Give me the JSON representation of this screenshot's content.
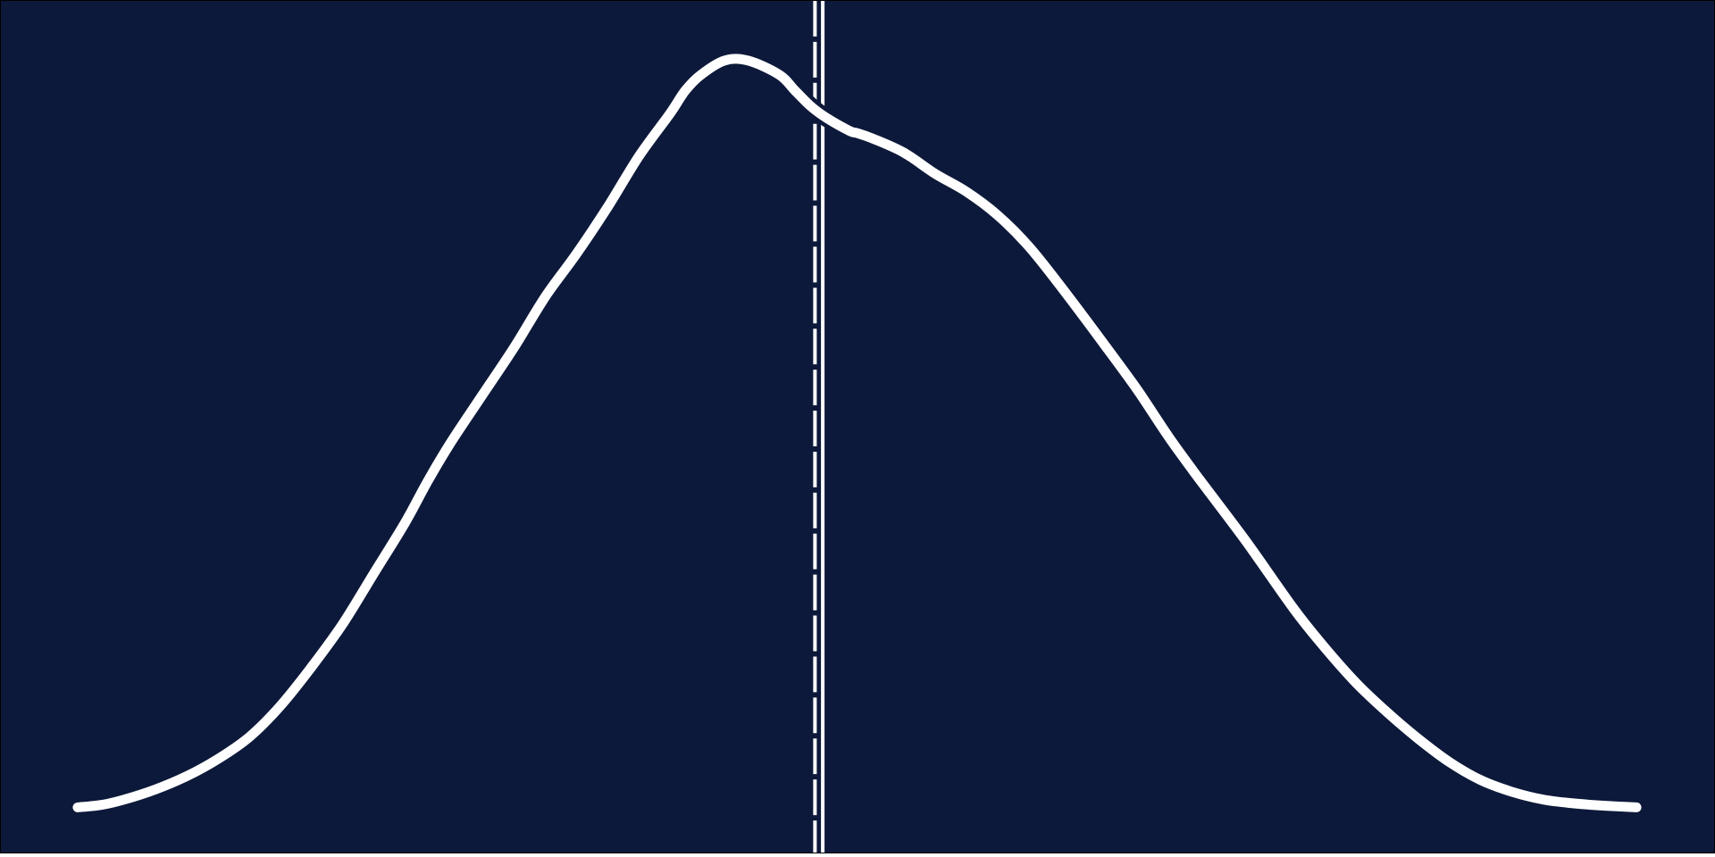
{
  "colors": {
    "background": "#0d193a",
    "line": "#ffffff"
  },
  "chart_data": {
    "type": "line",
    "title": "",
    "xlabel": "",
    "ylabel": "",
    "grid": false,
    "legend": "none",
    "xlim": [
      0,
      100
    ],
    "ylim": [
      0,
      1
    ],
    "series": [
      {
        "x": [
          0,
          1.5,
          3,
          5,
          7,
          9,
          11,
          13,
          15,
          17,
          19,
          21,
          22.5,
          24,
          26,
          28,
          30,
          32,
          34,
          36,
          38,
          39,
          40,
          41.5,
          43,
          45,
          46,
          47,
          48,
          49.5,
          50,
          51,
          53,
          55,
          57,
          59,
          61,
          63,
          66,
          68,
          70,
          72,
          75,
          78,
          80,
          82,
          84,
          86,
          88,
          90,
          92,
          94,
          96,
          98,
          100
        ],
        "values": [
          0.01,
          0.013,
          0.02,
          0.033,
          0.05,
          0.072,
          0.1,
          0.14,
          0.19,
          0.245,
          0.31,
          0.375,
          0.43,
          0.48,
          0.54,
          0.6,
          0.665,
          0.72,
          0.78,
          0.845,
          0.9,
          0.93,
          0.95,
          0.968,
          0.968,
          0.95,
          0.93,
          0.91,
          0.895,
          0.878,
          0.875,
          0.868,
          0.85,
          0.823,
          0.8,
          0.77,
          0.73,
          0.68,
          0.6,
          0.545,
          0.485,
          0.43,
          0.35,
          0.265,
          0.215,
          0.17,
          0.132,
          0.098,
          0.068,
          0.045,
          0.03,
          0.02,
          0.015,
          0.012,
          0.01
        ]
      }
    ],
    "reference_lines": [
      {
        "x": 47.3,
        "style": "dashed"
      },
      {
        "x": 47.8,
        "style": "solid"
      }
    ]
  }
}
